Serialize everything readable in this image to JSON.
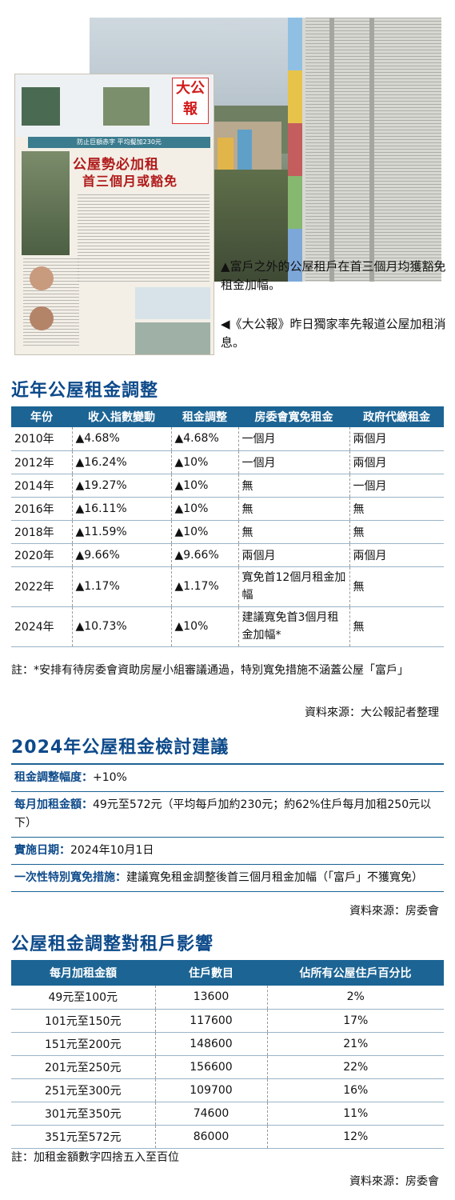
{
  "photos": {
    "newspaper": {
      "logo": "大公報",
      "headline_1": "公屋勢必加租",
      "headline_2": "首三個月或豁免",
      "strip": "防止巨額赤字 平均擬加230元"
    },
    "caption_1": "▲富戶之外的公屋租戶在首三個月均獲豁免租金加幅。",
    "caption_2": "◀《大公報》昨日獨家率先報道公屋加租消息。"
  },
  "section1": {
    "title": "近年公屋租金調整",
    "headers": [
      "年份",
      "收入指數變動",
      "租金調整",
      "房委會寬免租金",
      "政府代繳租金"
    ],
    "rows": [
      [
        "2010年",
        "▲4.68%",
        "▲4.68%",
        "一個月",
        "兩個月"
      ],
      [
        "2012年",
        "▲16.24%",
        "▲10%",
        "一個月",
        "兩個月"
      ],
      [
        "2014年",
        "▲19.27%",
        "▲10%",
        "無",
        "一個月"
      ],
      [
        "2016年",
        "▲16.11%",
        "▲10%",
        "無",
        "無"
      ],
      [
        "2018年",
        "▲11.59%",
        "▲10%",
        "無",
        "無"
      ],
      [
        "2020年",
        "▲9.66%",
        "▲9.66%",
        "兩個月",
        "兩個月"
      ],
      [
        "2022年",
        "▲1.17%",
        "▲1.17%",
        "寬免首12個月租金加幅",
        "無"
      ],
      [
        "2024年",
        "▲10.73%",
        "▲10%",
        "建議寬免首3個月租金加幅*",
        "無"
      ]
    ],
    "note": "註：*安排有待房委會資助房屋小組審議通過，特別寬免措施不涵蓋公屋「富戶」",
    "source": "資料來源：大公報記者整理"
  },
  "section2": {
    "title": "2024年公屋租金檢討建議",
    "rows": [
      {
        "label": "租金調整幅度：",
        "value": "+10%"
      },
      {
        "label": "每月加租金額：",
        "value": "49元至572元（平均每戶加約230元；約62%住戶每月加租250元以下）"
      },
      {
        "label": "實施日期：",
        "value": "2024年10月1日"
      },
      {
        "label": "一次性特別寬免措施：",
        "value": "建議寬免租金調整後首三個月租金加幅（「富戶」不獲寬免）"
      }
    ],
    "source": "資料來源：房委會"
  },
  "section3": {
    "title": "公屋租金調整對租戶影響",
    "headers": [
      "每月加租金額",
      "住戶數目",
      "佔所有公屋住戶百分比"
    ],
    "rows": [
      [
        "49元至100元",
        "13600",
        "2%"
      ],
      [
        "101元至150元",
        "117600",
        "17%"
      ],
      [
        "151元至200元",
        "148600",
        "21%"
      ],
      [
        "201元至250元",
        "156600",
        "22%"
      ],
      [
        "251元至300元",
        "109700",
        "16%"
      ],
      [
        "301元至350元",
        "74600",
        "11%"
      ],
      [
        "351元至572元",
        "86000",
        "12%"
      ]
    ],
    "note": "註：加租金額數字四捨五入至百位",
    "source": "資料來源：房委會"
  },
  "colors": {
    "accent": "#1c6494",
    "title": "#0d4a8a",
    "newspaper_red": "#d21c1c"
  }
}
